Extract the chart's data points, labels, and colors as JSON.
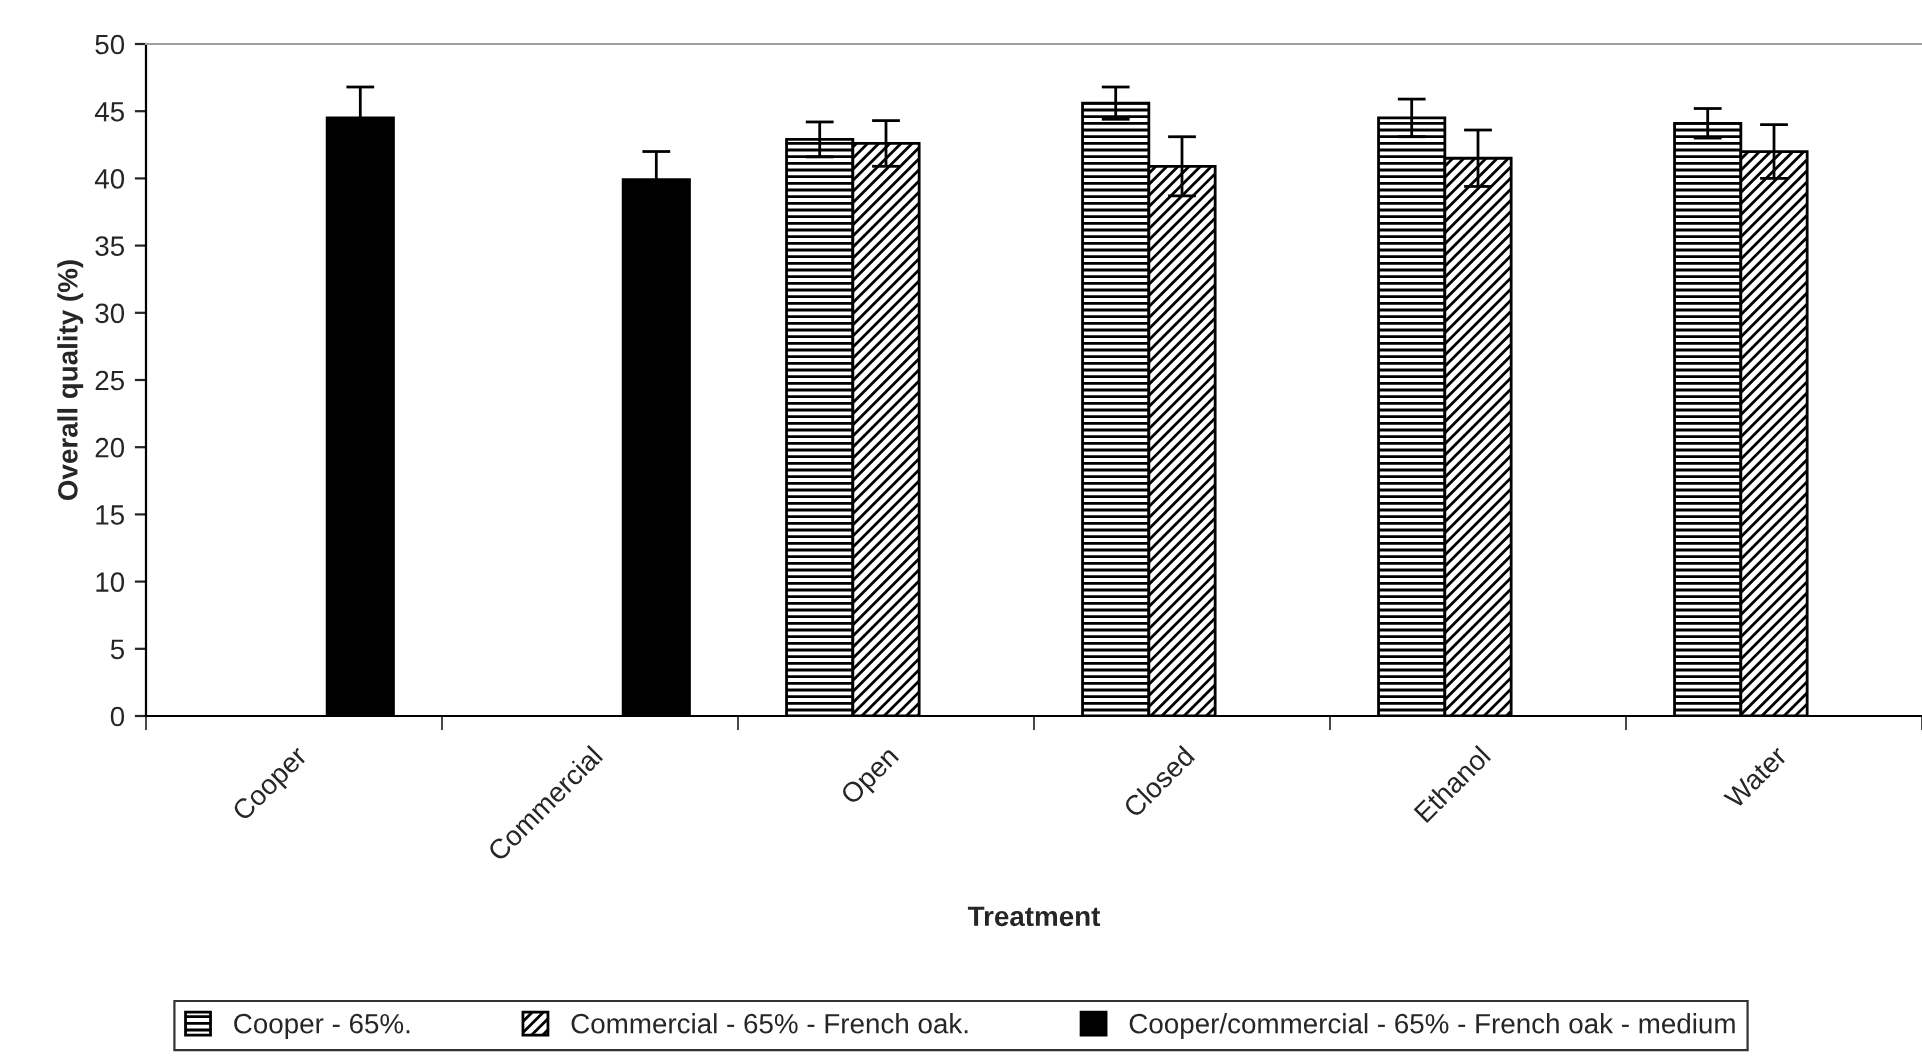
{
  "chart_data": {
    "type": "bar",
    "xlabel": "Treatment",
    "ylabel": "Overall quality (%)",
    "categories": [
      "Cooper",
      "Commercial",
      "Open",
      "Closed",
      "Ethanol",
      "Water"
    ],
    "series": [
      {
        "name": "Cooper - 65%.",
        "color": "#000000",
        "values": [
          null,
          null,
          42.9,
          45.6,
          44.5,
          44.1
        ],
        "errors": [
          null,
          null,
          1.3,
          1.2,
          1.4,
          1.1
        ]
      },
      {
        "name": "Commercial - 65% - French oak.",
        "color": "#000000",
        "values": [
          null,
          null,
          42.6,
          40.9,
          41.5,
          42.0
        ],
        "errors": [
          null,
          null,
          1.7,
          2.2,
          2.1,
          2.0
        ]
      },
      {
        "name": "Cooper/commercial - 65% - French oak - medium",
        "color": "#000000",
        "values": [
          44.5,
          39.9,
          null,
          null,
          null,
          null
        ],
        "errors": [
          2.3,
          2.1,
          null,
          null,
          null,
          null
        ]
      }
    ],
    "ylim": [
      0,
      50
    ],
    "yticks": [
      0,
      5,
      10,
      15,
      20,
      25,
      30,
      35,
      40,
      45,
      50
    ],
    "grid": false,
    "legend": "bottom"
  }
}
